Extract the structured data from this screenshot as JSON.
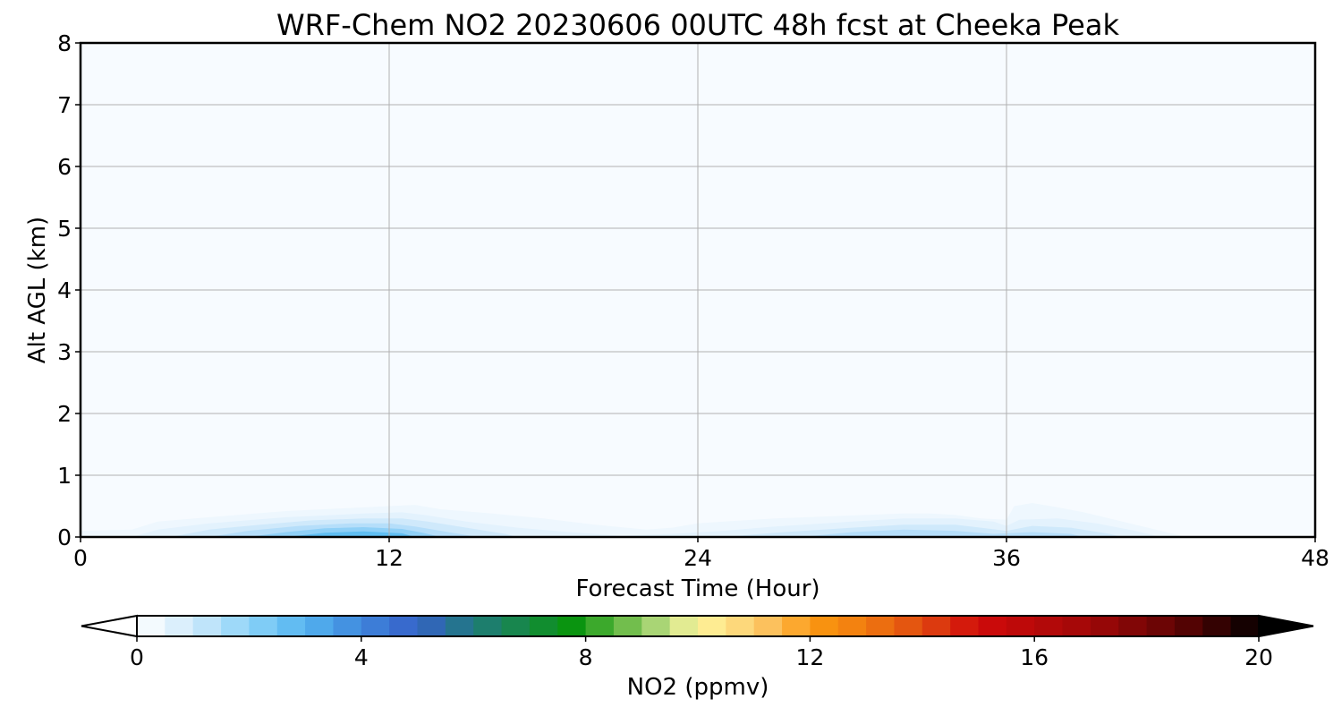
{
  "chart_data": {
    "type": "heatmap",
    "title": "WRF-Chem NO2  20230606 00UTC 48h fcst at Cheeka Peak",
    "xlabel": "Forecast Time (Hour)",
    "ylabel": "Alt AGL (km)",
    "xlim": [
      0,
      48
    ],
    "ylim": [
      0,
      8
    ],
    "x_ticks": [
      0,
      12,
      24,
      36,
      48
    ],
    "y_ticks": [
      0,
      1,
      2,
      3,
      4,
      5,
      6,
      7,
      8
    ],
    "grid": true,
    "contour_levels": [
      {
        "level": 0.05,
        "color": "#f7fbff"
      },
      {
        "level": 0.25,
        "color": "#eef7fe"
      },
      {
        "level": 0.5,
        "color": "#e3f2fd"
      },
      {
        "level": 1.0,
        "color": "#cfe9fb"
      },
      {
        "level": 1.5,
        "color": "#b5defa"
      },
      {
        "level": 2.0,
        "color": "#8fd0f7"
      },
      {
        "level": 2.5,
        "color": "#5fbef2"
      }
    ],
    "regions": [
      {
        "level": 0.05,
        "points": [
          [
            0,
            0.33
          ],
          [
            1.5,
            0.33
          ],
          [
            3,
            0.42
          ],
          [
            4,
            0.55
          ],
          [
            4.5,
            0.68
          ],
          [
            6,
            0.6
          ],
          [
            8,
            0.55
          ],
          [
            10,
            0.58
          ],
          [
            12,
            0.62
          ],
          [
            13,
            0.65
          ],
          [
            14,
            0.55
          ],
          [
            15,
            0.42
          ],
          [
            17,
            0.42
          ],
          [
            19,
            0.35
          ],
          [
            21,
            0.22
          ],
          [
            22,
            0.2
          ],
          [
            23,
            0.28
          ],
          [
            24,
            0.4
          ],
          [
            26,
            0.47
          ],
          [
            28,
            0.55
          ],
          [
            30,
            0.65
          ],
          [
            31.5,
            0.75
          ],
          [
            32.5,
            0.8
          ],
          [
            32,
            1.1
          ],
          [
            27.5,
            1.05
          ],
          [
            26.3,
            1.25
          ],
          [
            26.5,
            1.48
          ],
          [
            28,
            1.65
          ],
          [
            30.5,
            1.68
          ],
          [
            31.5,
            1.85
          ],
          [
            32.5,
            2.15
          ],
          [
            33.5,
            2.22
          ],
          [
            34.5,
            2.2
          ],
          [
            35,
            1.85
          ],
          [
            35.8,
            1.5
          ],
          [
            36.5,
            1.25
          ],
          [
            37,
            1.4
          ],
          [
            37.5,
            1.3
          ],
          [
            38,
            1.05
          ],
          [
            39.5,
            0.95
          ],
          [
            41,
            0.8
          ],
          [
            42,
            0.65
          ],
          [
            43,
            0.45
          ],
          [
            44,
            0.2
          ],
          [
            45,
            0
          ],
          [
            0,
            0
          ]
        ]
      },
      {
        "level": 0.25,
        "points": [
          [
            0,
            0.1
          ],
          [
            2,
            0.12
          ],
          [
            3,
            0.25
          ],
          [
            5,
            0.32
          ],
          [
            8,
            0.42
          ],
          [
            11,
            0.48
          ],
          [
            12,
            0.5
          ],
          [
            13,
            0.52
          ],
          [
            14,
            0.45
          ],
          [
            16,
            0.38
          ],
          [
            18,
            0.3
          ],
          [
            20,
            0.2
          ],
          [
            22,
            0.12
          ],
          [
            23,
            0.15
          ],
          [
            24,
            0.22
          ],
          [
            25,
            0.25
          ],
          [
            27,
            0.3
          ],
          [
            30,
            0.35
          ],
          [
            32,
            0.38
          ],
          [
            33,
            0.38
          ],
          [
            34,
            0.36
          ],
          [
            35,
            0.3
          ],
          [
            36,
            0.28
          ],
          [
            36.3,
            0.5
          ],
          [
            37,
            0.55
          ],
          [
            38,
            0.48
          ],
          [
            39,
            0.4
          ],
          [
            40,
            0.3
          ],
          [
            41,
            0.2
          ],
          [
            42,
            0.1
          ],
          [
            43,
            0
          ],
          [
            0,
            0
          ]
        ]
      },
      {
        "level": 0.5,
        "points": [
          [
            2,
            0
          ],
          [
            3,
            0.12
          ],
          [
            5,
            0.22
          ],
          [
            8,
            0.32
          ],
          [
            11,
            0.38
          ],
          [
            12.5,
            0.4
          ],
          [
            13.5,
            0.35
          ],
          [
            15,
            0.25
          ],
          [
            17,
            0.15
          ],
          [
            19,
            0.08
          ],
          [
            21,
            0.02
          ],
          [
            23,
            0.05
          ],
          [
            25,
            0.1
          ],
          [
            27,
            0.17
          ],
          [
            30,
            0.25
          ],
          [
            32,
            0.3
          ],
          [
            34,
            0.3
          ],
          [
            35.5,
            0.25
          ],
          [
            36,
            0.18
          ],
          [
            36.5,
            0.28
          ],
          [
            38,
            0.3
          ],
          [
            39.5,
            0.22
          ],
          [
            41,
            0.1
          ],
          [
            42,
            0
          ],
          [
            2,
            0
          ]
        ]
      },
      {
        "level": 1.0,
        "points": [
          [
            3.5,
            0
          ],
          [
            5,
            0.12
          ],
          [
            7,
            0.2
          ],
          [
            9,
            0.27
          ],
          [
            11,
            0.3
          ],
          [
            12.5,
            0.3
          ],
          [
            13.5,
            0.25
          ],
          [
            15,
            0.15
          ],
          [
            16.5,
            0.05
          ],
          [
            17,
            0
          ],
          [
            25,
            0
          ],
          [
            27,
            0.07
          ],
          [
            30,
            0.15
          ],
          [
            32,
            0.2
          ],
          [
            34,
            0.2
          ],
          [
            35,
            0.15
          ],
          [
            36,
            0.1
          ],
          [
            37,
            0.18
          ],
          [
            38.5,
            0.15
          ],
          [
            40,
            0.05
          ],
          [
            40.5,
            0
          ],
          [
            3.5,
            0
          ]
        ]
      },
      {
        "level": 1.5,
        "points": [
          [
            5,
            0
          ],
          [
            6.5,
            0.1
          ],
          [
            8.5,
            0.18
          ],
          [
            10.5,
            0.22
          ],
          [
            12,
            0.22
          ],
          [
            13,
            0.17
          ],
          [
            14,
            0.1
          ],
          [
            15,
            0.03
          ],
          [
            15.5,
            0
          ],
          [
            28,
            0
          ],
          [
            30,
            0.08
          ],
          [
            32,
            0.12
          ],
          [
            34,
            0.1
          ],
          [
            35.5,
            0.05
          ],
          [
            37,
            0.08
          ],
          [
            38.5,
            0.05
          ],
          [
            39,
            0
          ],
          [
            5,
            0
          ]
        ]
      },
      {
        "level": 2.0,
        "points": [
          [
            6.5,
            0
          ],
          [
            8,
            0.08
          ],
          [
            9.5,
            0.14
          ],
          [
            11,
            0.16
          ],
          [
            12.5,
            0.13
          ],
          [
            13.3,
            0.07
          ],
          [
            14,
            0
          ],
          [
            6.5,
            0
          ]
        ]
      },
      {
        "level": 2.5,
        "points": [
          [
            8,
            0
          ],
          [
            9.5,
            0.07
          ],
          [
            11,
            0.09
          ],
          [
            12.5,
            0.06
          ],
          [
            13,
            0
          ],
          [
            8,
            0
          ]
        ]
      }
    ],
    "colorbar": {
      "label": "NO2  (ppmv)",
      "min": 0,
      "max": 20,
      "step": 0.5,
      "ticks": [
        0,
        4,
        8,
        12,
        16,
        20
      ],
      "extend": "both",
      "under_color": "#ffffff",
      "over_color": "#000000",
      "stops": [
        {
          "value": 0,
          "color": "#ffffff"
        },
        {
          "value": 1,
          "color": "#cfe9fb"
        },
        {
          "value": 2,
          "color": "#8dd4f8"
        },
        {
          "value": 3,
          "color": "#54b4f0"
        },
        {
          "value": 4,
          "color": "#3f86dc"
        },
        {
          "value": 5,
          "color": "#3560c8"
        },
        {
          "value": 6,
          "color": "#1f7a7c"
        },
        {
          "value": 7,
          "color": "#158a3e"
        },
        {
          "value": 7.75,
          "color": "#0a9410"
        },
        {
          "value": 8.5,
          "color": "#55b33a"
        },
        {
          "value": 9,
          "color": "#8ec960"
        },
        {
          "value": 9.5,
          "color": "#c4e08a"
        },
        {
          "value": 10,
          "color": "#fff59a"
        },
        {
          "value": 10.5,
          "color": "#fde38a"
        },
        {
          "value": 11.5,
          "color": "#fcb54e"
        },
        {
          "value": 12,
          "color": "#fb9a10"
        },
        {
          "value": 13,
          "color": "#f07a10"
        },
        {
          "value": 14,
          "color": "#e04a10"
        },
        {
          "value": 15,
          "color": "#d00a0a"
        },
        {
          "value": 17,
          "color": "#a00808"
        },
        {
          "value": 18.5,
          "color": "#620404"
        },
        {
          "value": 20,
          "color": "#050000"
        }
      ]
    }
  }
}
